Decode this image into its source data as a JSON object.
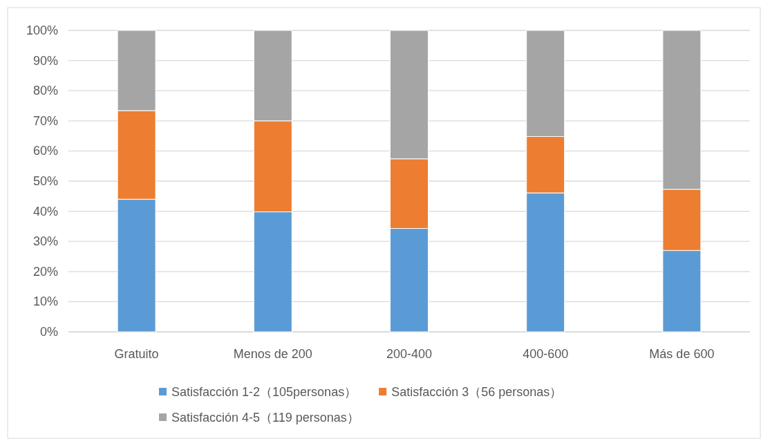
{
  "chart_data": {
    "type": "bar",
    "stacked": true,
    "categories": [
      "Gratuito",
      "Menos de 200",
      "200-400",
      "400-600",
      "Más de 600"
    ],
    "series": [
      {
        "name": "Satisfacción 1-2（105personas）",
        "color": "#5b9bd5",
        "values": [
          44.0,
          39.8,
          34.3,
          46.1,
          27.0
        ]
      },
      {
        "name": "Satisfacción  3（56 personas）",
        "color": "#ed7d31",
        "values": [
          29.4,
          30.2,
          23.1,
          18.7,
          20.3
        ]
      },
      {
        "name": "Satisfacción 4-5（119 personas）",
        "color": "#a5a5a5",
        "values": [
          26.6,
          30.0,
          42.6,
          35.2,
          52.7
        ]
      }
    ],
    "ylim": [
      0,
      100
    ],
    "yticks": [
      {
        "value": 0,
        "label": "0%"
      },
      {
        "value": 10,
        "label": "10%"
      },
      {
        "value": 20,
        "label": "20%"
      },
      {
        "value": 30,
        "label": "30%"
      },
      {
        "value": 40,
        "label": "40%"
      },
      {
        "value": 50,
        "label": "50%"
      },
      {
        "value": 60,
        "label": "60%"
      },
      {
        "value": 70,
        "label": "70%"
      },
      {
        "value": 80,
        "label": "80%"
      },
      {
        "value": 90,
        "label": "90%"
      },
      {
        "value": 100,
        "label": "100%"
      }
    ],
    "grid": "y",
    "legend": "bottom"
  }
}
